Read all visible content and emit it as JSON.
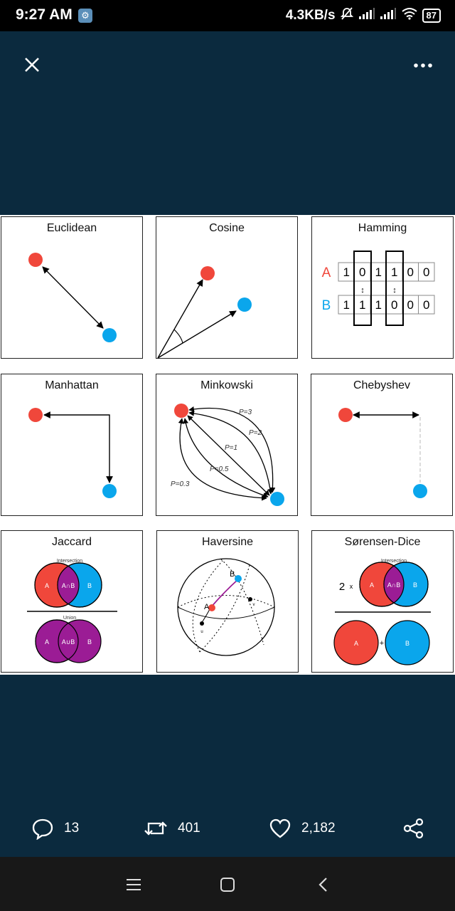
{
  "status_bar": {
    "time": "9:27 AM",
    "network_speed": "4.3KB/s",
    "battery": "87",
    "icons": [
      "settings-icon",
      "mute-icon",
      "signal-icon",
      "signal-icon",
      "wifi-icon",
      "battery-icon"
    ]
  },
  "top_bar": {
    "close_icon": "close-icon",
    "more_icon": "more-icon"
  },
  "panels": {
    "euclidean": {
      "title": "Euclidean"
    },
    "cosine": {
      "title": "Cosine"
    },
    "hamming": {
      "title": "Hamming",
      "row_a_label": "A",
      "row_b_label": "B",
      "row_a": [
        "1",
        "0",
        "1",
        "1",
        "0",
        "0"
      ],
      "row_b": [
        "1",
        "1",
        "1",
        "0",
        "0",
        "0"
      ]
    },
    "manhattan": {
      "title": "Manhattan"
    },
    "minkowski": {
      "title": "Minkowski",
      "labels": [
        "P=3",
        "P=2",
        "P=1",
        "P=0.5",
        "P=0.3"
      ]
    },
    "chebyshev": {
      "title": "Chebyshev"
    },
    "jaccard": {
      "title": "Jaccard",
      "intersection_label": "Intersection",
      "union_label": "Union",
      "a": "A",
      "b": "B",
      "a_and_b": "A∩B",
      "a_or_b": "A∪B"
    },
    "haversine": {
      "title": "Haversine",
      "a": "A",
      "b": "B",
      "u": "u",
      "v": "v"
    },
    "sorensen": {
      "title": "Sørensen-Dice",
      "intersection_label": "Intersection",
      "multiplier": "2",
      "times": "x",
      "a": "A",
      "b": "B",
      "a_and_b": "A∩B",
      "plus": "+"
    }
  },
  "colors": {
    "red": "#f0473b",
    "blue": "#0aa6ec",
    "purple": "#9b1c95",
    "background": "#0b2a3e"
  },
  "actions": {
    "reply_count": "13",
    "retweet_count": "401",
    "like_count": "2,182",
    "icons": [
      "comment-icon",
      "retweet-icon",
      "heart-icon",
      "share-icon"
    ]
  },
  "nav_bar": {
    "icons": [
      "menu-icon",
      "home-icon",
      "back-icon"
    ]
  }
}
